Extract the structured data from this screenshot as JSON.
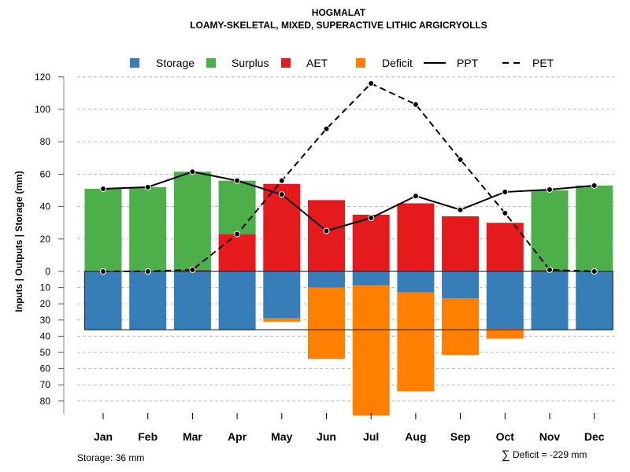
{
  "chart_data": {
    "type": "bar",
    "title": "HOGMALAT",
    "subtitle": "LOAMY-SKELETAL, MIXED, SUPERACTIVE LITHIC ARGICRYOLLS",
    "ylabel": "Inputs | Outputs | Storage    (mm)",
    "xlabel": "",
    "categories": [
      "Jan",
      "Feb",
      "Mar",
      "Apr",
      "May",
      "Jun",
      "Jul",
      "Aug",
      "Sep",
      "Oct",
      "Nov",
      "Dec"
    ],
    "yticks_upper": [
      "0",
      "20",
      "40",
      "60",
      "80",
      "100",
      "120"
    ],
    "yticks_lower": [
      "10",
      "20",
      "30",
      "40",
      "50",
      "60",
      "70",
      "80"
    ],
    "ylim": [
      -80,
      120
    ],
    "grid": true,
    "legend_position": "top",
    "legend": [
      {
        "label": "Storage",
        "type": "box",
        "color": "#377EB8"
      },
      {
        "label": "Surplus",
        "type": "box",
        "color": "#4DAF4A"
      },
      {
        "label": "AET",
        "type": "box",
        "color": "#E41A1C"
      },
      {
        "label": "Deficit",
        "type": "box",
        "color": "#FF7F00"
      },
      {
        "label": "PPT",
        "type": "line",
        "style": "solid"
      },
      {
        "label": "PET",
        "type": "line",
        "style": "dashed"
      }
    ],
    "series": [
      {
        "name": "AET",
        "color": "#E41A1C",
        "values": [
          0,
          0,
          1,
          23,
          54,
          44,
          35,
          42,
          34,
          30,
          1,
          0
        ]
      },
      {
        "name": "Surplus",
        "color": "#4DAF4A",
        "values": [
          51,
          52,
          60.5,
          33,
          0,
          0,
          0,
          0,
          0,
          0,
          49,
          53
        ]
      },
      {
        "name": "Storage",
        "color": "#377EB8",
        "values": [
          36,
          36,
          36,
          36,
          29,
          10,
          8.5,
          13,
          16.5,
          35.5,
          36,
          36
        ]
      },
      {
        "name": "Deficit",
        "color": "#FF7F00",
        "values": [
          0,
          0,
          0,
          0,
          2,
          44,
          80.5,
          61,
          35,
          6,
          0,
          0
        ]
      },
      {
        "name": "PPT",
        "style": "solid",
        "values": [
          51,
          52,
          61.5,
          56,
          47.5,
          25,
          33,
          46.5,
          38,
          49,
          50.5,
          53
        ]
      },
      {
        "name": "PET",
        "style": "dashed",
        "values": [
          0,
          0,
          1,
          23,
          56,
          88,
          116,
          103,
          69,
          36,
          1,
          0
        ]
      }
    ],
    "storage_capacity": 36,
    "notes": {
      "storage": "Storage: 36 mm",
      "deficit_symbol": "∑",
      "deficit": "Deficit = -229 mm"
    }
  }
}
